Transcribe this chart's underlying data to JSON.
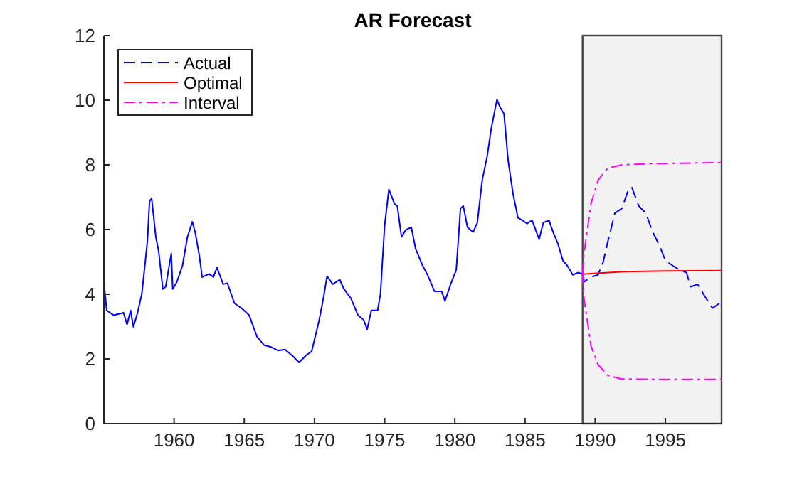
{
  "chart_data": {
    "type": "line",
    "title": "AR Forecast",
    "xlim": [
      1955,
      1999
    ],
    "ylim": [
      0,
      12
    ],
    "xticks": [
      1960,
      1965,
      1970,
      1975,
      1980,
      1985,
      1990,
      1995
    ],
    "yticks": [
      0,
      2,
      4,
      6,
      8,
      10,
      12
    ],
    "legend": "top left",
    "grid": false,
    "bands": [
      {
        "axis": "x",
        "from": 1989.1,
        "to": 1999,
        "color": "#f2f2f2"
      }
    ],
    "series": [
      {
        "color": "#0000ff",
        "line_style": "solid",
        "x": [
          1955.0,
          1955.2,
          1955.7,
          1956.4,
          1956.65,
          1956.9,
          1957.1,
          1957.4,
          1957.7,
          1958.1,
          1958.25,
          1958.4,
          1958.7,
          1958.9,
          1959.2,
          1959.4,
          1959.8,
          1959.9,
          1960.2,
          1960.6,
          1960.95,
          1961.3,
          1961.5,
          1961.8,
          1962.0,
          1962.5,
          1962.8,
          1963.05,
          1963.5,
          1963.8,
          1964.3,
          1964.8,
          1965.35,
          1965.9,
          1966.4,
          1966.9,
          1967.4,
          1967.9,
          1968.4,
          1968.9,
          1969.4,
          1969.8,
          1970.3,
          1970.6,
          1970.9,
          1971.3,
          1971.8,
          1972.1,
          1972.6,
          1973.1,
          1973.5,
          1973.75,
          1974.05,
          1974.5,
          1974.7,
          1975.0,
          1975.3,
          1975.7,
          1975.9,
          1976.2,
          1976.5,
          1976.9,
          1977.2,
          1977.7,
          1978.05,
          1978.55,
          1979.06,
          1979.3,
          1979.7,
          1980.1,
          1980.4,
          1980.6,
          1980.9,
          1981.3,
          1981.6,
          1981.95,
          1982.3,
          1982.6,
          1983.0,
          1983.2,
          1983.5,
          1983.8,
          1984.15,
          1984.5,
          1984.8,
          1985.15,
          1985.5,
          1986.0,
          1986.3,
          1986.7,
          1987.0,
          1987.35,
          1987.7,
          1988.0,
          1988.4,
          1988.8,
          1989.15
        ],
        "values": [
          4.38,
          3.5,
          3.35,
          3.43,
          3.06,
          3.5,
          2.99,
          3.43,
          4.01,
          5.63,
          6.87,
          6.97,
          5.77,
          5.33,
          4.16,
          4.23,
          5.26,
          4.16,
          4.38,
          4.89,
          5.77,
          6.24,
          5.92,
          5.19,
          4.53,
          4.63,
          4.53,
          4.82,
          4.31,
          4.34,
          3.72,
          3.57,
          3.35,
          2.69,
          2.43,
          2.37,
          2.26,
          2.29,
          2.11,
          1.89,
          2.11,
          2.23,
          3.13,
          3.79,
          4.56,
          4.31,
          4.45,
          4.16,
          3.87,
          3.35,
          3.21,
          2.91,
          3.5,
          3.5,
          4.01,
          6.14,
          7.24,
          6.8,
          6.73,
          5.77,
          5.99,
          6.07,
          5.41,
          4.89,
          4.6,
          4.09,
          4.09,
          3.79,
          4.31,
          4.75,
          6.65,
          6.73,
          6.07,
          5.92,
          6.21,
          7.53,
          8.26,
          9.14,
          10.02,
          9.8,
          9.58,
          8.12,
          7.09,
          6.36,
          6.29,
          6.18,
          6.29,
          5.7,
          6.21,
          6.29,
          5.92,
          5.55,
          5.04,
          4.89,
          4.6,
          4.67,
          4.6
        ]
      },
      {
        "name": "Actual",
        "color": "#0000ff",
        "line_style": "dashed",
        "x": [
          1989.15,
          1989.2,
          1989.7,
          1990.2,
          1990.55,
          1990.9,
          1991.4,
          1991.9,
          1992.3,
          1992.6,
          1993.1,
          1993.6,
          1994.1,
          1994.6,
          1995.0,
          1995.5,
          1996.0,
          1996.5,
          1996.8,
          1997.3,
          1997.8,
          1998.35,
          1998.85
        ],
        "values": [
          4.6,
          4.38,
          4.53,
          4.6,
          4.97,
          5.63,
          6.51,
          6.65,
          7.16,
          7.31,
          6.73,
          6.51,
          5.92,
          5.48,
          5.04,
          4.89,
          4.75,
          4.67,
          4.23,
          4.31,
          3.94,
          3.57,
          3.72
        ]
      },
      {
        "name": "Optimal",
        "color": "#ff0000",
        "line_style": "solid",
        "x": [
          1989.1,
          1992,
          1995,
          1999
        ],
        "values": [
          4.62,
          4.7,
          4.72,
          4.73
        ]
      },
      {
        "name": "Interval",
        "color": "#ff00ff",
        "line_style": "dashdot",
        "x": [
          1989.1,
          1989.2,
          1989.7,
          1990.2,
          1990.9,
          1991.9,
          1994.3,
          1999.0,
          null,
          1989.1,
          1989.2,
          1989.7,
          1990.2,
          1990.9,
          1991.9,
          1994.3,
          1999.0
        ],
        "values": [
          4.65,
          5.26,
          6.8,
          7.53,
          7.9,
          8.0,
          8.04,
          8.07,
          null,
          4.65,
          3.87,
          2.4,
          1.82,
          1.49,
          1.38,
          1.37,
          1.37
        ]
      }
    ]
  }
}
